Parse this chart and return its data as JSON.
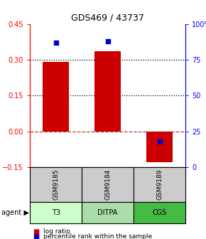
{
  "title": "GDS469 / 43737",
  "samples": [
    "GSM9185",
    "GSM9184",
    "GSM9189"
  ],
  "agents": [
    "T3",
    "DITPA",
    "CGS"
  ],
  "log_ratios": [
    0.29,
    0.335,
    -0.13
  ],
  "percentile_ranks": [
    87,
    88,
    18
  ],
  "bar_color": "#cc0000",
  "dot_color": "#0000cc",
  "ylim_left": [
    -0.15,
    0.45
  ],
  "ylim_right": [
    0,
    100
  ],
  "yticks_left": [
    -0.15,
    0,
    0.15,
    0.3,
    0.45
  ],
  "yticks_right": [
    0,
    25,
    50,
    75,
    100
  ],
  "ytick_labels_right": [
    "0",
    "25",
    "50",
    "75",
    "100%"
  ],
  "hlines_dotted": [
    0.15,
    0.3
  ],
  "hline_dashed_color": "#cc3333",
  "agent_colors": [
    "#ccffcc",
    "#aaddaa",
    "#44bb44"
  ],
  "sample_bg_color": "#cccccc",
  "bar_width": 0.5
}
